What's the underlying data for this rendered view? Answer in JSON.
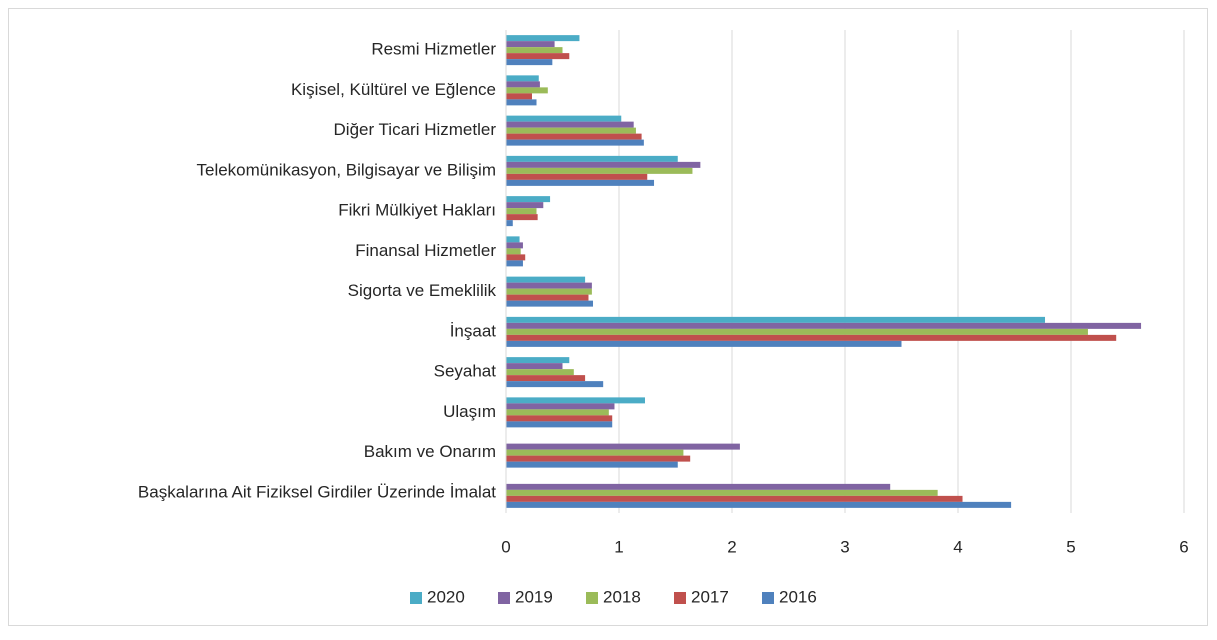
{
  "chart_data": {
    "type": "hbar",
    "categories": [
      "Resmi Hizmetler",
      "Kişisel, Kültürel ve Eğlence",
      "Diğer Ticari Hizmetler",
      "Telekomünikasyon, Bilgisayar ve Bilişim",
      "Fikri Mülkiyet Hakları",
      "Finansal Hizmetler",
      "Sigorta ve Emeklilik",
      "İnşaat",
      "Seyahat",
      "Ulaşım",
      "Bakım ve Onarım",
      "Başkalarına Ait Fiziksel Girdiler Üzerinde İmalat"
    ],
    "series": [
      {
        "name": "2020",
        "color": "#4bacc6",
        "values": [
          0.65,
          0.29,
          1.02,
          1.52,
          0.39,
          0.12,
          0.7,
          4.77,
          0.56,
          1.23,
          null,
          null
        ]
      },
      {
        "name": "2019",
        "color": "#8064a2",
        "values": [
          0.43,
          0.3,
          1.13,
          1.72,
          0.33,
          0.15,
          0.76,
          5.62,
          0.5,
          0.96,
          2.07,
          3.4
        ]
      },
      {
        "name": "2018",
        "color": "#9bbb59",
        "values": [
          0.5,
          0.37,
          1.15,
          1.65,
          0.27,
          0.13,
          0.76,
          5.15,
          0.6,
          0.91,
          1.57,
          3.82
        ]
      },
      {
        "name": "2017",
        "color": "#c0504d",
        "values": [
          0.56,
          0.23,
          1.2,
          1.25,
          0.28,
          0.17,
          0.73,
          5.4,
          0.7,
          0.94,
          1.63,
          4.04
        ]
      },
      {
        "name": "2016",
        "color": "#4f81bd",
        "values": [
          0.41,
          0.27,
          1.22,
          1.31,
          0.06,
          0.15,
          0.77,
          3.5,
          0.86,
          0.94,
          1.52,
          4.47
        ]
      }
    ],
    "xlim": [
      0,
      6
    ],
    "xticks": [
      0,
      1,
      2,
      3,
      4,
      5,
      6
    ],
    "grid": true,
    "legend": "bottom"
  }
}
